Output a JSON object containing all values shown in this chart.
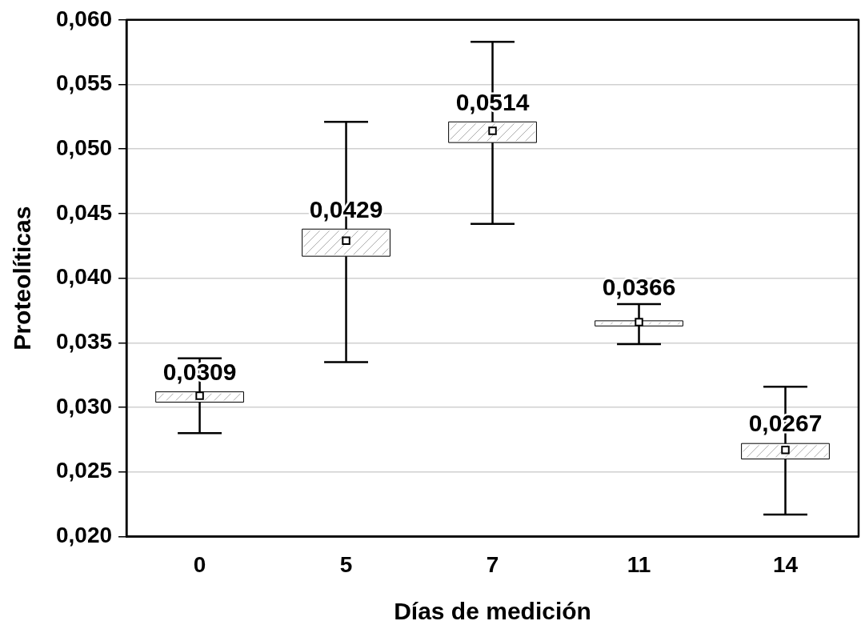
{
  "chart_data": {
    "type": "box",
    "xlabel": "Días de medición",
    "ylabel": "Proteolíticas",
    "categories": [
      "0",
      "5",
      "7",
      "11",
      "14"
    ],
    "boxes": [
      {
        "low": 0.028,
        "q1": 0.0304,
        "median": 0.0309,
        "q3": 0.0312,
        "high": 0.0338
      },
      {
        "low": 0.0335,
        "q1": 0.0417,
        "median": 0.0429,
        "q3": 0.0438,
        "high": 0.0521
      },
      {
        "low": 0.0442,
        "q1": 0.0505,
        "median": 0.0514,
        "q3": 0.0521,
        "high": 0.0583
      },
      {
        "low": 0.0349,
        "q1": 0.0363,
        "median": 0.0366,
        "q3": 0.0367,
        "high": 0.038
      },
      {
        "low": 0.0217,
        "q1": 0.026,
        "median": 0.0267,
        "q3": 0.0272,
        "high": 0.0316
      }
    ],
    "value_labels": [
      "0,0309",
      "0,0429",
      "0,0514",
      "0,0366",
      "0,0267"
    ],
    "color": "#ffffff",
    "marker": "square",
    "grid": "y",
    "ylim": [
      0.02,
      0.06
    ],
    "yticks": [
      {
        "value": 0.02,
        "label": "0,020"
      },
      {
        "value": 0.025,
        "label": "0,025"
      },
      {
        "value": 0.03,
        "label": "0,030"
      },
      {
        "value": 0.035,
        "label": "0,035"
      },
      {
        "value": 0.04,
        "label": "0,040"
      },
      {
        "value": 0.045,
        "label": "0,045"
      },
      {
        "value": 0.05,
        "label": "0,050"
      },
      {
        "value": 0.055,
        "label": "0,055"
      },
      {
        "value": 0.06,
        "label": "0,060"
      }
    ]
  }
}
